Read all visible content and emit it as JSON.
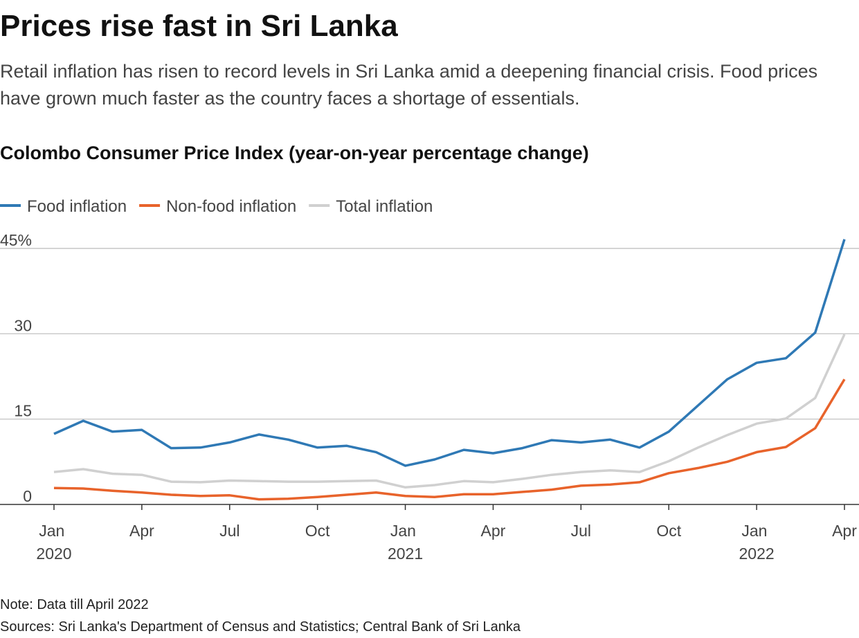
{
  "chart_data": {
    "type": "line",
    "title": "Prices rise fast in Sri Lanka",
    "subtitle": "Retail inflation has risen to record levels in Sri Lanka amid a deepening financial crisis. Food prices have grown much faster as the country faces a shortage of essentials.",
    "chart_title": "Colombo Consumer Price Index (year-on-year percentage change)",
    "categories": [
      "Jan 2020",
      null,
      null,
      "Apr",
      null,
      null,
      "Jul",
      null,
      null,
      "Oct",
      null,
      null,
      "Jan 2021",
      null,
      null,
      "Apr",
      null,
      null,
      "Jul",
      null,
      null,
      "Oct",
      null,
      null,
      "Jan 2022",
      null,
      null,
      "Apr"
    ],
    "series": [
      {
        "name": "Food inflation",
        "color": "#2f79b5",
        "values": [
          12.4,
          14.7,
          12.8,
          13.1,
          9.9,
          10.0,
          10.9,
          12.3,
          11.4,
          10.0,
          10.3,
          9.2,
          6.8,
          7.9,
          9.6,
          9.0,
          9.9,
          11.3,
          10.9,
          11.4,
          10.0,
          12.8,
          17.4,
          22.0,
          24.9,
          25.7,
          30.2,
          46.6
        ]
      },
      {
        "name": "Non-food inflation",
        "color": "#e8632b",
        "values": [
          2.9,
          2.8,
          2.4,
          2.1,
          1.7,
          1.5,
          1.6,
          0.9,
          1.0,
          1.3,
          1.7,
          2.1,
          1.5,
          1.3,
          1.8,
          1.8,
          2.2,
          2.6,
          3.3,
          3.5,
          3.9,
          5.5,
          6.4,
          7.5,
          9.2,
          10.1,
          13.4,
          22.0
        ]
      },
      {
        "name": "Total inflation",
        "color": "#d0d0d0",
        "values": [
          5.7,
          6.2,
          5.4,
          5.2,
          4.0,
          3.9,
          4.2,
          4.1,
          4.0,
          4.0,
          4.1,
          4.2,
          3.0,
          3.4,
          4.1,
          3.9,
          4.5,
          5.2,
          5.7,
          6.0,
          5.7,
          7.6,
          10.0,
          12.2,
          14.2,
          15.1,
          18.7,
          29.9
        ]
      }
    ],
    "ylim": [
      0,
      45
    ],
    "yticks": [
      0,
      15,
      30,
      {
        "value": 45,
        "label": "45%"
      }
    ],
    "grid": true,
    "note": "Note: Data till April 2022",
    "source": "Sources: Sri Lanka's Department of Census and Statistics; Central Bank of Sri Lanka"
  }
}
